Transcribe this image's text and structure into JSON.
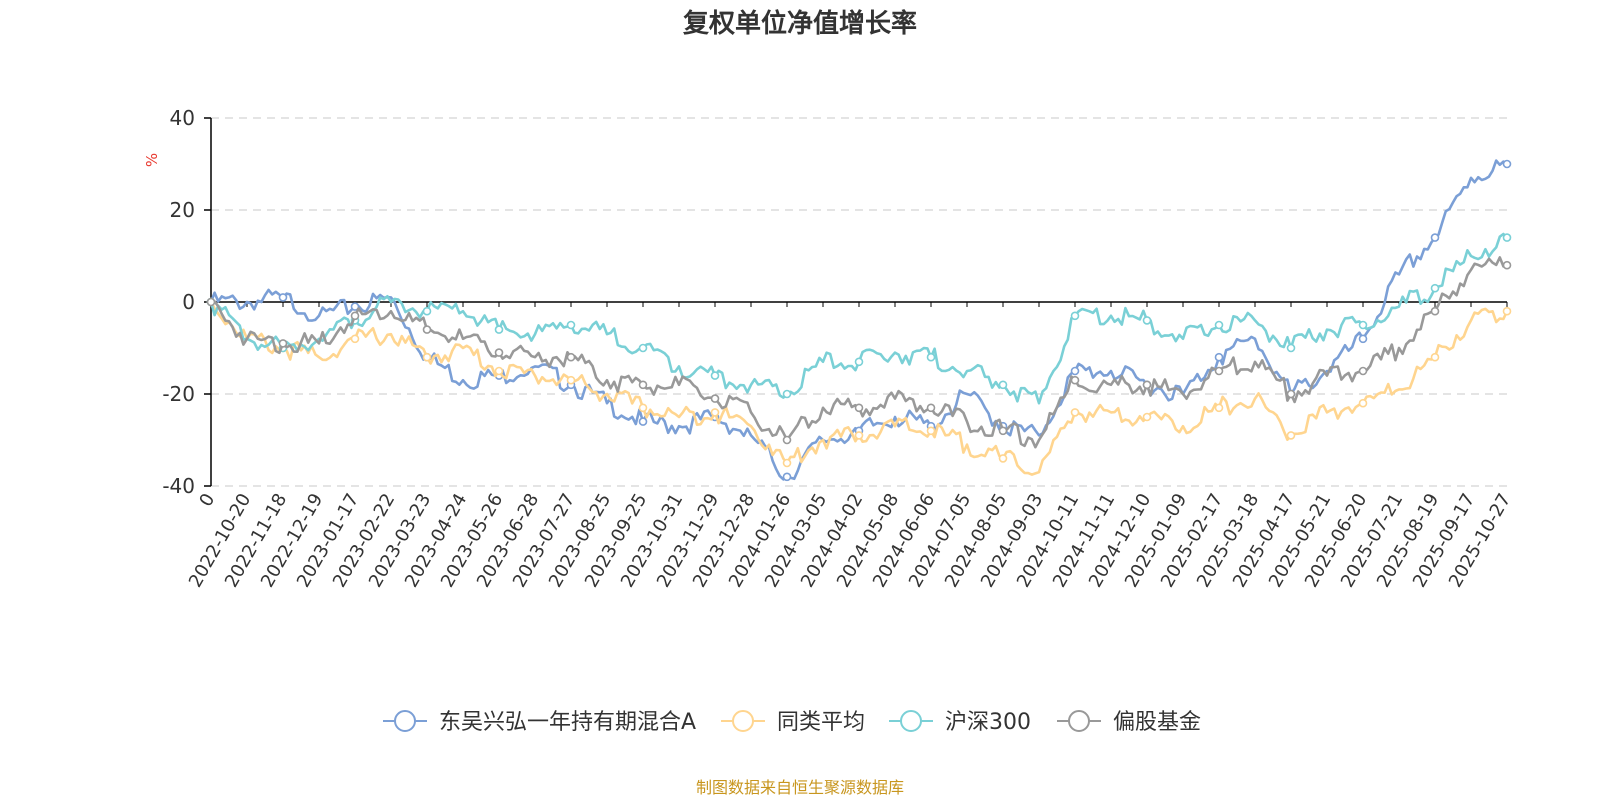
{
  "chart_data": {
    "type": "line",
    "title": "复权单位净值增长率",
    "ylabel": "%",
    "ylim": [
      -40,
      40
    ],
    "yticks": [
      "40",
      "20",
      "0",
      "-20",
      "-40"
    ],
    "x": [
      "0",
      "2022-10-20",
      "2022-11-18",
      "2022-12-19",
      "2023-01-17",
      "2023-02-22",
      "2023-03-23",
      "2023-04-24",
      "2023-05-26",
      "2023-06-28",
      "2023-07-27",
      "2023-08-25",
      "2023-09-25",
      "2023-10-31",
      "2023-11-29",
      "2023-12-28",
      "2024-01-26",
      "2024-03-05",
      "2024-04-02",
      "2024-05-08",
      "2024-06-06",
      "2024-07-05",
      "2024-08-05",
      "2024-09-03",
      "2024-10-11",
      "2024-11-11",
      "2024-12-10",
      "2025-01-09",
      "2025-02-17",
      "2025-03-18",
      "2025-04-17",
      "2025-05-21",
      "2025-06-20",
      "2025-07-21",
      "2025-08-19",
      "2025-09-17",
      "2025-10-27"
    ],
    "series": [
      {
        "name": "东吴兴弘一年持有期混合A",
        "color": "#7b9fd6",
        "values": [
          0,
          0,
          1,
          -3,
          -1,
          1,
          -12,
          -17,
          -16,
          -14,
          -18,
          -22,
          -26,
          -27,
          -25,
          -29,
          -38,
          -30,
          -28,
          -25,
          -27,
          -20,
          -27,
          -29,
          -15,
          -15,
          -18,
          -20,
          -12,
          -8,
          -20,
          -15,
          -8,
          6,
          14,
          27,
          30
        ]
      },
      {
        "name": "同类平均",
        "color": "#ffd58f",
        "values": [
          0,
          -8,
          -10,
          -12,
          -8,
          -7,
          -12,
          -10,
          -15,
          -16,
          -17,
          -20,
          -23,
          -25,
          -24,
          -27,
          -35,
          -30,
          -29,
          -27,
          -28,
          -31,
          -34,
          -37,
          -24,
          -24,
          -25,
          -27,
          -23,
          -21,
          -29,
          -24,
          -22,
          -19,
          -12,
          -4,
          -2
        ]
      },
      {
        "name": "沪深300",
        "color": "#7ad0d6",
        "values": [
          0,
          -8,
          -10,
          -8,
          -4,
          0,
          -2,
          -2,
          -6,
          -7,
          -5,
          -7,
          -10,
          -14,
          -16,
          -18,
          -20,
          -13,
          -13,
          -11,
          -12,
          -15,
          -18,
          -22,
          -3,
          -3,
          -4,
          -8,
          -5,
          -4,
          -10,
          -6,
          -5,
          -1,
          3,
          10,
          14
        ]
      },
      {
        "name": "偏股基金",
        "color": "#999999",
        "values": [
          0,
          -8,
          -9,
          -9,
          -3,
          -2,
          -6,
          -8,
          -11,
          -12,
          -12,
          -17,
          -18,
          -18,
          -21,
          -24,
          -30,
          -23,
          -23,
          -21,
          -23,
          -26,
          -28,
          -30,
          -17,
          -18,
          -18,
          -20,
          -15,
          -13,
          -20,
          -16,
          -15,
          -10,
          -2,
          7,
          8
        ]
      }
    ],
    "legend_position": "bottom-center"
  },
  "source": "制图数据来自恒生聚源数据库"
}
